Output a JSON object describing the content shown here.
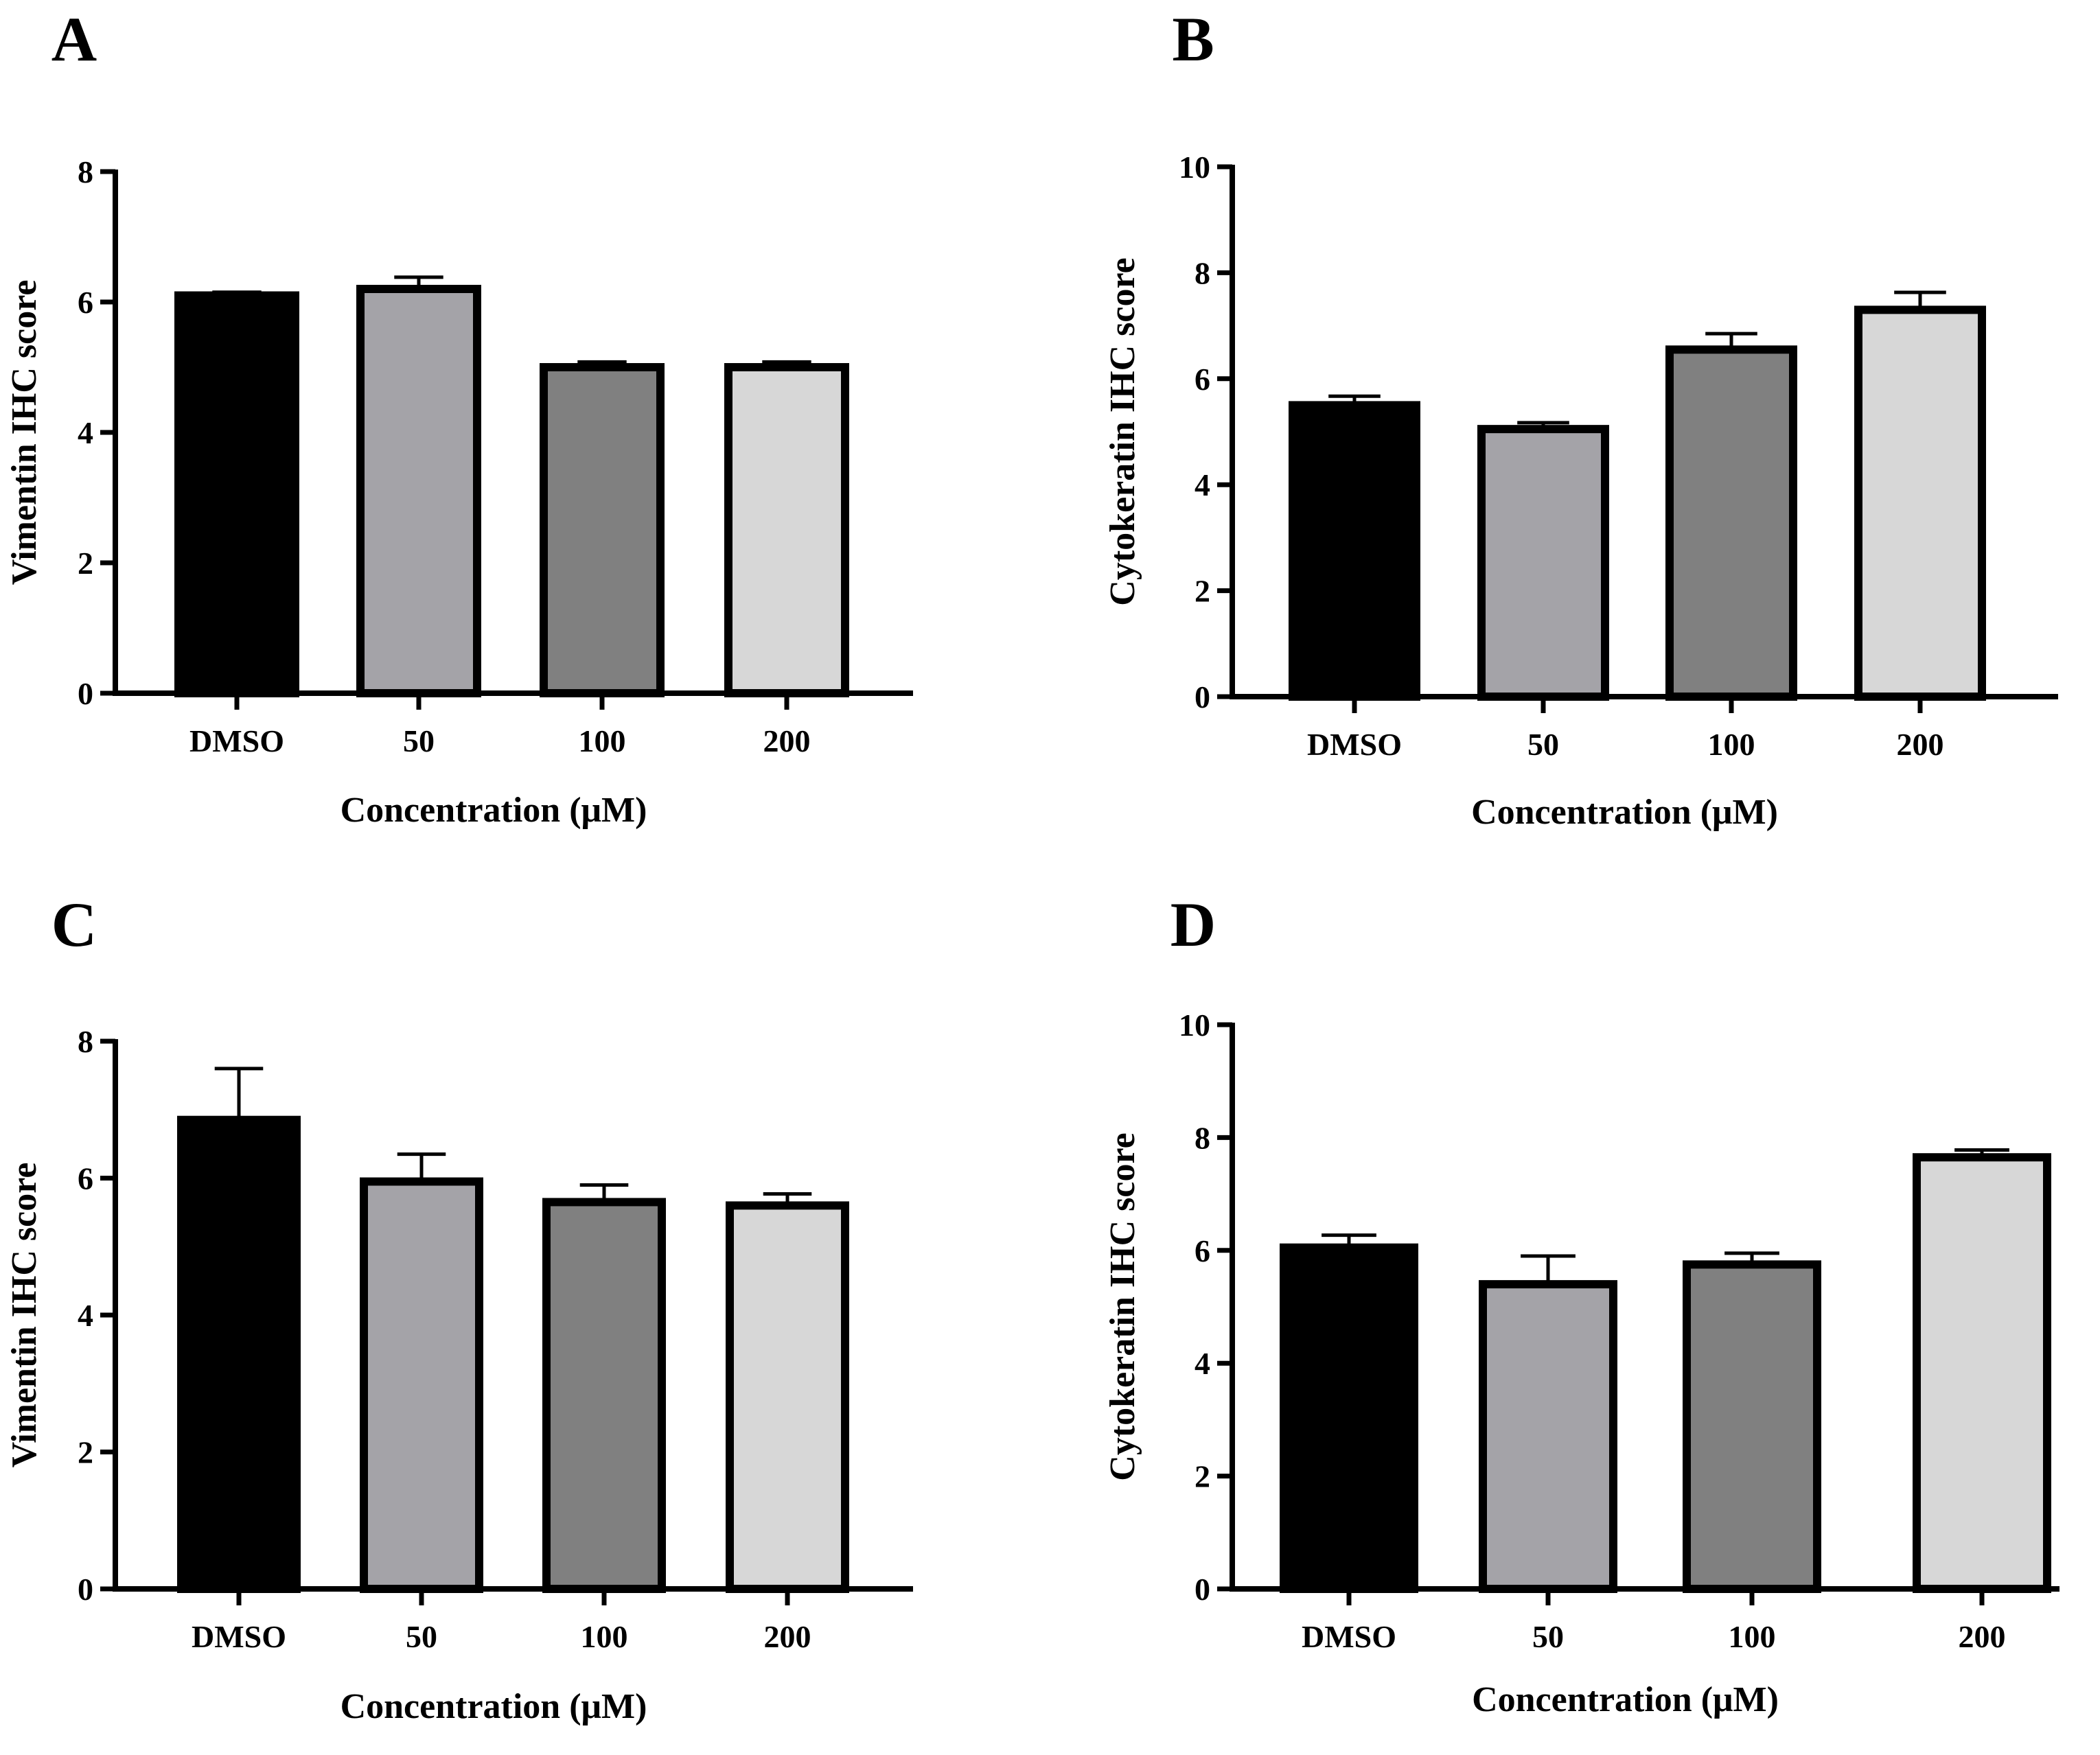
{
  "figure": {
    "colors": {
      "DMSO": "#000000",
      "50": "#a4a3a8",
      "100": "#808080",
      "200": "#d7d7d7",
      "outline": "#000000"
    }
  },
  "chart_data": [
    {
      "panel": "A",
      "type": "bar",
      "categories": [
        "DMSO",
        "50",
        "100",
        "200"
      ],
      "values": [
        6.1,
        6.2,
        5.0,
        5.0
      ],
      "errors": [
        0.05,
        0.18,
        0.08,
        0.08
      ],
      "xlabel": "Concentration (μM)",
      "ylabel": "Vimentin IHC score",
      "ylim": [
        0,
        8
      ],
      "yticks": [
        0,
        2,
        4,
        6,
        8
      ],
      "ytick_labels": [
        "0",
        "2",
        "4",
        "6",
        "8"
      ],
      "grid": false
    },
    {
      "panel": "B",
      "type": "bar",
      "categories": [
        "DMSO",
        "50",
        "100",
        "200"
      ],
      "values": [
        5.5,
        5.05,
        6.55,
        7.3
      ],
      "errors": [
        0.17,
        0.12,
        0.3,
        0.33
      ],
      "xlabel": "Concentration (μM)",
      "ylabel": "Cytokeratin IHC score",
      "ylim": [
        0,
        10
      ],
      "yticks": [
        0,
        2,
        4,
        6,
        8,
        10
      ],
      "ytick_labels": [
        "0",
        "2",
        "4",
        "6",
        "8",
        "10"
      ],
      "grid": false
    },
    {
      "panel": "C",
      "type": "bar",
      "categories": [
        "DMSO",
        "50",
        "100",
        "200"
      ],
      "values": [
        6.85,
        5.95,
        5.65,
        5.6
      ],
      "errors": [
        0.75,
        0.4,
        0.25,
        0.17
      ],
      "xlabel": "Concentration (μM)",
      "ylabel": "Vimentin IHC score",
      "ylim": [
        0,
        8
      ],
      "yticks": [
        0,
        2,
        4,
        6,
        8
      ],
      "ytick_labels": [
        "0",
        "2",
        "4",
        "6",
        "8"
      ],
      "grid": false
    },
    {
      "panel": "D",
      "type": "bar",
      "categories": [
        "DMSO",
        "50",
        "100",
        "200"
      ],
      "values": [
        6.05,
        5.4,
        5.75,
        7.65
      ],
      "errors": [
        0.22,
        0.5,
        0.2,
        0.13
      ],
      "xlabel": "Concentration (μM)",
      "ylabel": "Cytokeratin IHC score",
      "ylim": [
        0,
        10
      ],
      "yticks": [
        0,
        2,
        4,
        6,
        8,
        10
      ],
      "ytick_labels": [
        "0",
        "2",
        "4",
        "6",
        "8",
        "10"
      ],
      "grid": false
    }
  ]
}
